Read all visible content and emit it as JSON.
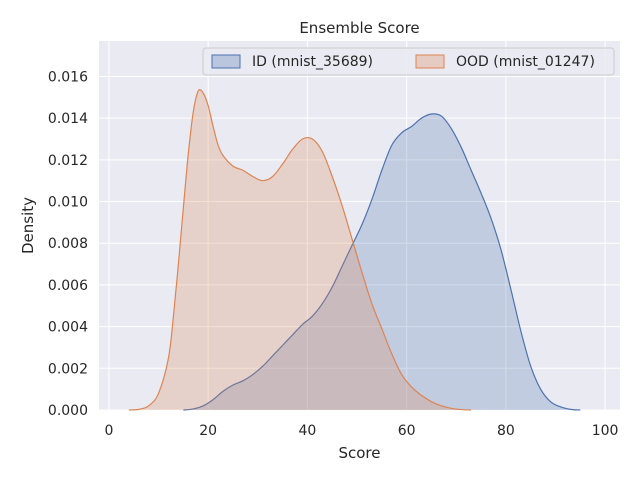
{
  "chart_data": {
    "type": "area",
    "title": "Ensemble Score",
    "xlabel": "Score",
    "ylabel": "Density",
    "xlim": [
      -2,
      103
    ],
    "ylim": [
      0,
      0.0177
    ],
    "xticks": [
      0,
      20,
      40,
      60,
      80,
      100
    ],
    "xtick_labels": [
      "0",
      "20",
      "40",
      "60",
      "80",
      "100"
    ],
    "yticks": [
      0,
      0.002,
      0.004,
      0.006,
      0.008,
      0.01,
      0.012,
      0.014,
      0.016
    ],
    "ytick_labels": [
      "0.000",
      "0.002",
      "0.004",
      "0.006",
      "0.008",
      "0.010",
      "0.012",
      "0.014",
      "0.016"
    ],
    "grid": true,
    "legend_position": "top-right",
    "series": [
      {
        "name": "ID (mnist_35689)",
        "color": "#4c72b0",
        "points": [
          [
            15,
            0.0
          ],
          [
            17,
            5e-05
          ],
          [
            19,
            0.0002
          ],
          [
            21,
            0.0005
          ],
          [
            23,
            0.0009
          ],
          [
            25,
            0.0012
          ],
          [
            27,
            0.0014
          ],
          [
            29,
            0.0017
          ],
          [
            31,
            0.0021
          ],
          [
            33,
            0.0026
          ],
          [
            35,
            0.0031
          ],
          [
            37,
            0.0036
          ],
          [
            39,
            0.0041
          ],
          [
            41,
            0.0045
          ],
          [
            43,
            0.0051
          ],
          [
            45,
            0.0059
          ],
          [
            47,
            0.0069
          ],
          [
            49,
            0.0079
          ],
          [
            51,
            0.0089
          ],
          [
            53,
            0.0101
          ],
          [
            55,
            0.0115
          ],
          [
            57,
            0.0127
          ],
          [
            59,
            0.0133
          ],
          [
            61,
            0.0136
          ],
          [
            63,
            0.014
          ],
          [
            65,
            0.0142
          ],
          [
            67,
            0.0141
          ],
          [
            69,
            0.0135
          ],
          [
            71,
            0.0126
          ],
          [
            73,
            0.0115
          ],
          [
            75,
            0.0104
          ],
          [
            77,
            0.0092
          ],
          [
            79,
            0.0077
          ],
          [
            81,
            0.0058
          ],
          [
            83,
            0.0038
          ],
          [
            85,
            0.0021
          ],
          [
            87,
            0.001
          ],
          [
            89,
            0.0004
          ],
          [
            91,
            0.00015
          ],
          [
            93,
            3e-05
          ],
          [
            95,
            0.0
          ]
        ]
      },
      {
        "name": "OOD (mnist_01247)",
        "color": "#dd8452",
        "points": [
          [
            4,
            0.0
          ],
          [
            6,
            3e-05
          ],
          [
            8,
            0.0002
          ],
          [
            10,
            0.0008
          ],
          [
            12,
            0.0025
          ],
          [
            13,
            0.0045
          ],
          [
            14,
            0.007
          ],
          [
            15,
            0.0097
          ],
          [
            16,
            0.0123
          ],
          [
            17,
            0.0143
          ],
          [
            18,
            0.0153
          ],
          [
            19,
            0.0152
          ],
          [
            20,
            0.0146
          ],
          [
            21,
            0.0136
          ],
          [
            22,
            0.0127
          ],
          [
            23,
            0.0122
          ],
          [
            25,
            0.0117
          ],
          [
            27,
            0.0115
          ],
          [
            29,
            0.0112
          ],
          [
            31,
            0.011
          ],
          [
            33,
            0.0112
          ],
          [
            35,
            0.0118
          ],
          [
            37,
            0.0125
          ],
          [
            39,
            0.013
          ],
          [
            41,
            0.013
          ],
          [
            43,
            0.0124
          ],
          [
            45,
            0.0112
          ],
          [
            47,
            0.0098
          ],
          [
            49,
            0.0082
          ],
          [
            51,
            0.0066
          ],
          [
            53,
            0.0051
          ],
          [
            55,
            0.0039
          ],
          [
            57,
            0.0027
          ],
          [
            59,
            0.0017
          ],
          [
            61,
            0.0011
          ],
          [
            63,
            0.0007
          ],
          [
            65,
            0.0004
          ],
          [
            67,
            0.0002
          ],
          [
            69,
            8e-05
          ],
          [
            71,
            2e-05
          ],
          [
            73,
            0.0
          ]
        ]
      }
    ]
  }
}
